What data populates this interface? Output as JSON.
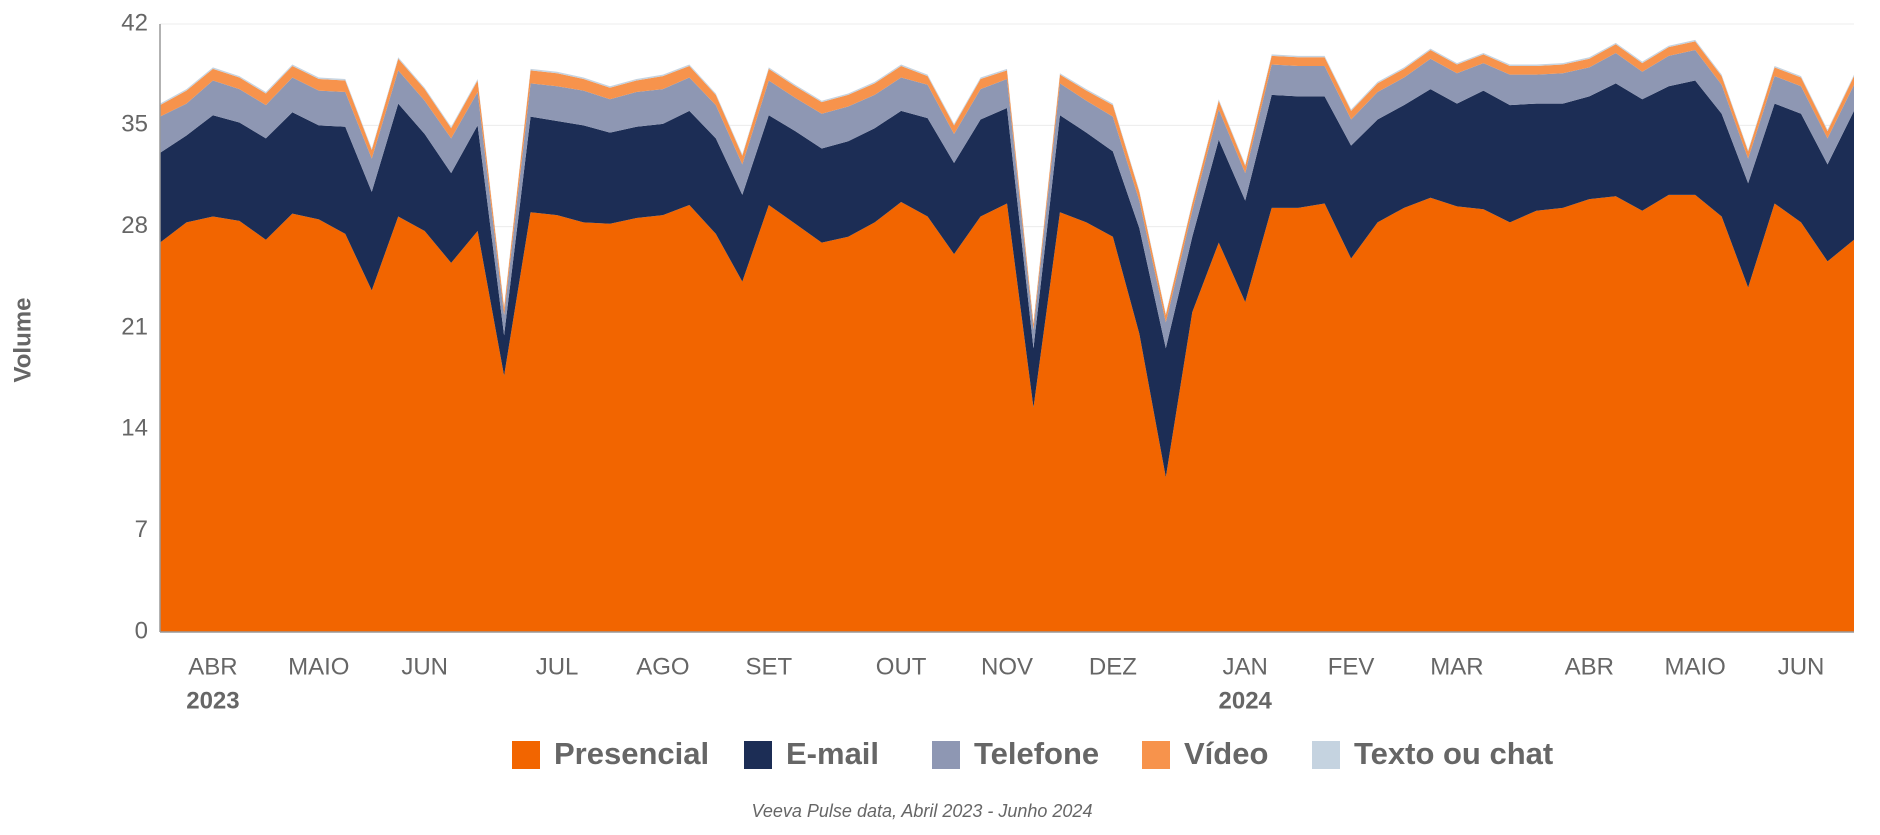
{
  "chart_data": {
    "type": "stacked-area",
    "y_label": "Volume",
    "footnote": "Veeva Pulse data, Abril 2023 - Junho 2024",
    "categories": [
      null,
      null,
      "ABR",
      null,
      null,
      null,
      "MAIO",
      null,
      null,
      null,
      "JUN",
      null,
      null,
      null,
      null,
      "JUL",
      null,
      null,
      null,
      "AGO",
      null,
      null,
      null,
      "SET",
      null,
      null,
      null,
      null,
      "OUT",
      null,
      null,
      null,
      "NOV",
      null,
      null,
      null,
      "DEZ",
      null,
      null,
      null,
      null,
      "JAN",
      null,
      null,
      null,
      "FEV",
      null,
      null,
      null,
      "MAR",
      null,
      null,
      null,
      null,
      "ABR",
      null,
      null,
      null,
      "MAIO",
      null,
      null,
      null,
      "JUN",
      null,
      null
    ],
    "category_years": [
      null,
      null,
      "2023",
      null,
      null,
      null,
      null,
      null,
      null,
      null,
      null,
      null,
      null,
      null,
      null,
      null,
      null,
      null,
      null,
      null,
      null,
      null,
      null,
      null,
      null,
      null,
      null,
      null,
      null,
      null,
      null,
      null,
      null,
      null,
      null,
      null,
      null,
      null,
      null,
      null,
      null,
      "2024",
      null,
      null,
      null,
      null,
      null,
      null,
      null,
      null,
      null,
      null,
      null,
      null,
      null,
      null,
      null,
      null,
      null,
      null,
      null,
      null,
      null,
      null,
      null
    ],
    "series": [
      {
        "name": "Presencial",
        "color": "#f26500",
        "values": [
          26.9,
          28.3,
          28.7,
          28.4,
          27.1,
          28.9,
          28.5,
          27.5,
          23.6,
          28.7,
          27.7,
          25.5,
          27.7,
          17.7,
          29.0,
          28.8,
          28.3,
          28.2,
          28.6,
          28.8,
          29.5,
          27.5,
          24.2,
          29.5,
          28.2,
          26.9,
          27.3,
          28.3,
          29.7,
          28.7,
          26.1,
          28.7,
          29.6,
          15.5,
          29.0,
          28.3,
          27.3,
          20.6,
          10.7,
          22.1,
          26.9,
          22.8,
          29.3,
          29.3,
          29.6,
          25.8,
          28.3,
          29.3,
          30.0,
          29.4,
          29.2,
          28.3,
          29.1,
          29.3,
          29.9,
          30.1,
          29.1,
          30.2,
          30.2,
          28.7,
          23.8,
          29.6,
          28.3,
          25.6,
          27.1
        ]
      },
      {
        "name": "E-mail",
        "color": "#1c2d55",
        "values": [
          6.2,
          6.0,
          7.0,
          6.8,
          7.0,
          7.0,
          6.5,
          7.4,
          6.8,
          7.8,
          6.7,
          6.2,
          7.3,
          2.8,
          6.6,
          6.5,
          6.7,
          6.3,
          6.3,
          6.3,
          6.5,
          6.6,
          6.0,
          6.2,
          6.4,
          6.5,
          6.6,
          6.5,
          6.3,
          6.8,
          6.3,
          6.7,
          6.6,
          4.1,
          6.7,
          6.2,
          5.9,
          7.3,
          8.9,
          5.2,
          7.1,
          7.0,
          7.8,
          7.7,
          7.4,
          7.8,
          7.1,
          7.1,
          7.5,
          7.1,
          8.2,
          8.1,
          7.4,
          7.2,
          7.1,
          7.8,
          7.7,
          7.5,
          7.9,
          7.1,
          7.2,
          6.9,
          7.5,
          6.7,
          8.9
        ]
      },
      {
        "name": "Telefone",
        "color": "#8e97b3",
        "values": [
          2.5,
          2.2,
          2.4,
          2.3,
          2.3,
          2.4,
          2.4,
          2.4,
          2.3,
          2.3,
          2.3,
          2.4,
          2.3,
          1.4,
          2.3,
          2.4,
          2.4,
          2.3,
          2.4,
          2.4,
          2.3,
          2.3,
          2.1,
          2.4,
          2.3,
          2.4,
          2.4,
          2.3,
          2.3,
          2.3,
          2.0,
          2.1,
          2.0,
          1.3,
          2.2,
          2.2,
          2.4,
          1.9,
          1.8,
          1.8,
          2.1,
          1.9,
          2.1,
          2.1,
          2.1,
          1.8,
          1.9,
          1.9,
          2.1,
          2.1,
          1.9,
          2.1,
          2.0,
          2.1,
          2.0,
          2.1,
          1.9,
          2.1,
          2.1,
          2.0,
          1.7,
          1.9,
          1.9,
          1.8,
          1.8
        ]
      },
      {
        "name": "Vídeo",
        "color": "#f7934c",
        "values": [
          0.8,
          0.9,
          0.8,
          0.8,
          0.8,
          0.8,
          0.8,
          0.8,
          0.6,
          0.8,
          0.8,
          0.7,
          0.8,
          0.5,
          0.9,
          0.9,
          0.8,
          0.8,
          0.8,
          0.9,
          0.8,
          0.7,
          0.6,
          0.8,
          0.8,
          0.8,
          0.8,
          0.8,
          0.8,
          0.6,
          0.6,
          0.7,
          0.6,
          0.4,
          0.6,
          0.7,
          0.8,
          0.6,
          0.5,
          0.5,
          0.6,
          0.5,
          0.6,
          0.6,
          0.6,
          0.6,
          0.6,
          0.6,
          0.6,
          0.6,
          0.6,
          0.6,
          0.6,
          0.6,
          0.6,
          0.6,
          0.6,
          0.6,
          0.6,
          0.6,
          0.5,
          0.6,
          0.6,
          0.5,
          0.6
        ]
      },
      {
        "name": "Texto ou chat",
        "color": "#c5d3e0",
        "values": [
          0.1,
          0.1,
          0.1,
          0.1,
          0.1,
          0.1,
          0.1,
          0.1,
          0.1,
          0.1,
          0.1,
          0.1,
          0.1,
          0.1,
          0.1,
          0.1,
          0.1,
          0.1,
          0.1,
          0.1,
          0.1,
          0.1,
          0.1,
          0.1,
          0.1,
          0.1,
          0.1,
          0.1,
          0.1,
          0.1,
          0.1,
          0.1,
          0.1,
          0.1,
          0.1,
          0.1,
          0.1,
          0.1,
          0.1,
          0.1,
          0.1,
          0.1,
          0.1,
          0.1,
          0.1,
          0.1,
          0.1,
          0.1,
          0.1,
          0.1,
          0.1,
          0.1,
          0.1,
          0.1,
          0.1,
          0.1,
          0.1,
          0.1,
          0.1,
          0.1,
          0.1,
          0.1,
          0.1,
          0.1,
          0.1
        ]
      }
    ],
    "ylim": [
      0,
      42
    ],
    "yticks": [
      0,
      7,
      14,
      21,
      28,
      35,
      42
    ],
    "grid": true
  }
}
